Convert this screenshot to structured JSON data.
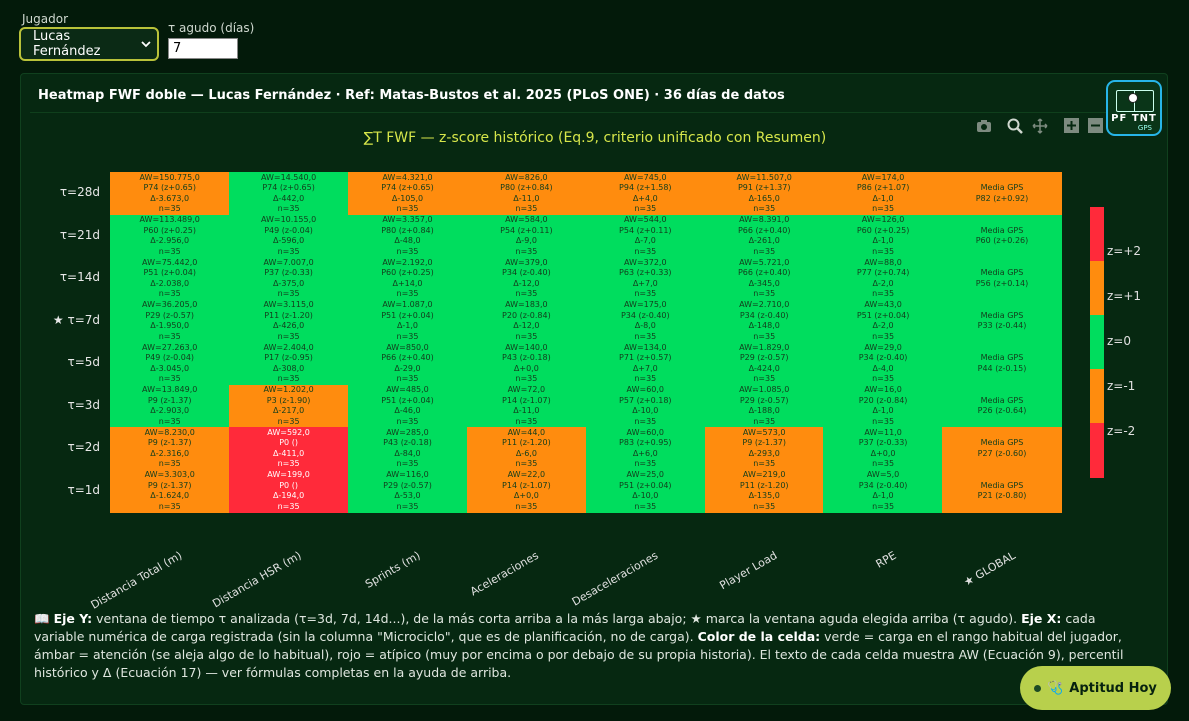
{
  "controls": {
    "player_label": "Jugador",
    "player_value": "Lucas Fernández",
    "tau_label": "τ agudo (días)",
    "tau_value": "7"
  },
  "card": {
    "title": "Heatmap FWF doble — Lucas Fernández · Ref: Matas-Bustos et al. 2025 (PLoS ONE) · 36 días de datos",
    "logo_text": "PF TNT",
    "logo_sub": "GPS"
  },
  "toolbar_icons": [
    "camera-icon",
    "zoom-icon",
    "pan-icon",
    "zoom-in-icon",
    "zoom-out-icon"
  ],
  "chart_data": {
    "type": "heatmap",
    "title": "∑T FWF — z-score histórico (Eq.9, criterio unificado con Resumen)",
    "rows": [
      "τ=28d",
      "τ=21d",
      "τ=14d",
      "★ τ=7d",
      "τ=5d",
      "τ=3d",
      "τ=2d",
      "τ=1d"
    ],
    "columns": [
      "Distancia Total (m)",
      "Distancia HSR (m)",
      "Sprints (m)",
      "Aceleraciones",
      "Desaceleraciones",
      "Player Load",
      "RPE",
      "★ GLOBAL"
    ],
    "colorscale": {
      "colors": [
        "#ff2a3a",
        "#ff8c0e",
        "#00dd5e",
        "#ff8c0e",
        "#ff2a3a"
      ],
      "ticks": [
        "z=+2",
        "z=+1",
        "z=0",
        "z=-1",
        "z=-2"
      ]
    },
    "colors": {
      "green": "#00dd5e",
      "amber": "#ff8c0e",
      "red": "#ff2a3a"
    },
    "cells": [
      [
        {
          "c": "amber",
          "t": [
            "AW=150.775,0",
            "P74 (z+0.65)",
            "Δ-3.673,0",
            "n=35"
          ]
        },
        {
          "c": "green",
          "t": [
            "AW=14.540,0",
            "P74 (z+0.65)",
            "Δ-442,0",
            "n=35"
          ]
        },
        {
          "c": "amber",
          "t": [
            "AW=4.321,0",
            "P74 (z+0.65)",
            "Δ-105,0",
            "n=35"
          ]
        },
        {
          "c": "amber",
          "t": [
            "AW=826,0",
            "P80 (z+0.84)",
            "Δ-11,0",
            "n=35"
          ]
        },
        {
          "c": "amber",
          "t": [
            "AW=745,0",
            "P94 (z+1.58)",
            "Δ+4,0",
            "n=35"
          ]
        },
        {
          "c": "amber",
          "t": [
            "AW=11.507,0",
            "P91 (z+1.37)",
            "Δ-165,0",
            "n=35"
          ]
        },
        {
          "c": "amber",
          "t": [
            "AW=174,0",
            "P86 (z+1.07)",
            "Δ-1,0",
            "n=35"
          ]
        },
        {
          "c": "amber",
          "t": [
            "Media GPS",
            "P82 (z+0.92)"
          ]
        }
      ],
      [
        {
          "c": "green",
          "t": [
            "AW=113.489,0",
            "P60 (z+0.25)",
            "Δ-2.956,0",
            "n=35"
          ]
        },
        {
          "c": "green",
          "t": [
            "AW=10.155,0",
            "P49 (z-0.04)",
            "Δ-596,0",
            "n=35"
          ]
        },
        {
          "c": "green",
          "t": [
            "AW=3.357,0",
            "P80 (z+0.84)",
            "Δ-48,0",
            "n=35"
          ]
        },
        {
          "c": "green",
          "t": [
            "AW=584,0",
            "P54 (z+0.11)",
            "Δ-9,0",
            "n=35"
          ]
        },
        {
          "c": "green",
          "t": [
            "AW=544,0",
            "P54 (z+0.11)",
            "Δ-7,0",
            "n=35"
          ]
        },
        {
          "c": "green",
          "t": [
            "AW=8.391,0",
            "P66 (z+0.40)",
            "Δ-261,0",
            "n=35"
          ]
        },
        {
          "c": "green",
          "t": [
            "AW=126,0",
            "P60 (z+0.25)",
            "Δ-1,0",
            "n=35"
          ]
        },
        {
          "c": "green",
          "t": [
            "Media GPS",
            "P60 (z+0.26)"
          ]
        }
      ],
      [
        {
          "c": "green",
          "t": [
            "AW=75.442,0",
            "P51 (z+0.04)",
            "Δ-2.038,0",
            "n=35"
          ]
        },
        {
          "c": "green",
          "t": [
            "AW=7.007,0",
            "P37 (z-0.33)",
            "Δ-375,0",
            "n=35"
          ]
        },
        {
          "c": "green",
          "t": [
            "AW=2.192,0",
            "P60 (z+0.25)",
            "Δ+14,0",
            "n=35"
          ]
        },
        {
          "c": "green",
          "t": [
            "AW=379,0",
            "P34 (z-0.40)",
            "Δ-12,0",
            "n=35"
          ]
        },
        {
          "c": "green",
          "t": [
            "AW=372,0",
            "P63 (z+0.33)",
            "Δ+7,0",
            "n=35"
          ]
        },
        {
          "c": "green",
          "t": [
            "AW=5.721,0",
            "P66 (z+0.40)",
            "Δ-345,0",
            "n=35"
          ]
        },
        {
          "c": "green",
          "t": [
            "AW=88,0",
            "P77 (z+0.74)",
            "Δ-2,0",
            "n=35"
          ]
        },
        {
          "c": "green",
          "t": [
            "Media GPS",
            "P56 (z+0.14)"
          ]
        }
      ],
      [
        {
          "c": "green",
          "t": [
            "AW=36.205,0",
            "P29 (z-0.57)",
            "Δ-1.950,0",
            "n=35"
          ]
        },
        {
          "c": "green",
          "t": [
            "AW=3.115,0",
            "P11 (z-1.20)",
            "Δ-426,0",
            "n=35"
          ]
        },
        {
          "c": "green",
          "t": [
            "AW=1.087,0",
            "P51 (z+0.04)",
            "Δ-1,0",
            "n=35"
          ]
        },
        {
          "c": "green",
          "t": [
            "AW=183,0",
            "P20 (z-0.84)",
            "Δ-12,0",
            "n=35"
          ]
        },
        {
          "c": "green",
          "t": [
            "AW=175,0",
            "P34 (z-0.40)",
            "Δ-8,0",
            "n=35"
          ]
        },
        {
          "c": "green",
          "t": [
            "AW=2.710,0",
            "P34 (z-0.40)",
            "Δ-148,0",
            "n=35"
          ]
        },
        {
          "c": "green",
          "t": [
            "AW=43,0",
            "P51 (z+0.04)",
            "Δ-2,0",
            "n=35"
          ]
        },
        {
          "c": "green",
          "t": [
            "Media GPS",
            "P33 (z-0.44)"
          ]
        }
      ],
      [
        {
          "c": "green",
          "t": [
            "AW=27.263,0",
            "P49 (z-0.04)",
            "Δ-3.045,0",
            "n=35"
          ]
        },
        {
          "c": "green",
          "t": [
            "AW=2.404,0",
            "P17 (z-0.95)",
            "Δ-308,0",
            "n=35"
          ]
        },
        {
          "c": "green",
          "t": [
            "AW=850,0",
            "P66 (z+0.40)",
            "Δ-29,0",
            "n=35"
          ]
        },
        {
          "c": "green",
          "t": [
            "AW=140,0",
            "P43 (z-0.18)",
            "Δ+0,0",
            "n=35"
          ]
        },
        {
          "c": "green",
          "t": [
            "AW=134,0",
            "P71 (z+0.57)",
            "Δ+7,0",
            "n=35"
          ]
        },
        {
          "c": "green",
          "t": [
            "AW=1.829,0",
            "P29 (z-0.57)",
            "Δ-424,0",
            "n=35"
          ]
        },
        {
          "c": "green",
          "t": [
            "AW=29,0",
            "P34 (z-0.40)",
            "Δ-4,0",
            "n=35"
          ]
        },
        {
          "c": "green",
          "t": [
            "Media GPS",
            "P44 (z-0.15)"
          ]
        }
      ],
      [
        {
          "c": "green",
          "t": [
            "AW=13.849,0",
            "P9 (z-1.37)",
            "Δ-2.903,0",
            "n=35"
          ]
        },
        {
          "c": "amber",
          "t": [
            "AW=1.202,0",
            "P3 (z-1.90)",
            "Δ-217,0",
            "n=35"
          ]
        },
        {
          "c": "green",
          "t": [
            "AW=485,0",
            "P51 (z+0.04)",
            "Δ-46,0",
            "n=35"
          ]
        },
        {
          "c": "green",
          "t": [
            "AW=72,0",
            "P14 (z-1.07)",
            "Δ-11,0",
            "n=35"
          ]
        },
        {
          "c": "green",
          "t": [
            "AW=60,0",
            "P57 (z+0.18)",
            "Δ-10,0",
            "n=35"
          ]
        },
        {
          "c": "green",
          "t": [
            "AW=1.085,0",
            "P29 (z-0.57)",
            "Δ-188,0",
            "n=35"
          ]
        },
        {
          "c": "green",
          "t": [
            "AW=16,0",
            "P20 (z-0.84)",
            "Δ-1,0",
            "n=35"
          ]
        },
        {
          "c": "green",
          "t": [
            "Media GPS",
            "P26 (z-0.64)"
          ]
        }
      ],
      [
        {
          "c": "amber",
          "t": [
            "AW=8.230,0",
            "P9 (z-1.37)",
            "Δ-2.316,0",
            "n=35"
          ]
        },
        {
          "c": "red",
          "t": [
            "AW=592,0",
            "P0 ()",
            "Δ-411,0",
            "n=35"
          ]
        },
        {
          "c": "green",
          "t": [
            "AW=285,0",
            "P43 (z-0.18)",
            "Δ-84,0",
            "n=35"
          ]
        },
        {
          "c": "amber",
          "t": [
            "AW=44,0",
            "P11 (z-1.20)",
            "Δ-6,0",
            "n=35"
          ]
        },
        {
          "c": "green",
          "t": [
            "AW=60,0",
            "P83 (z+0.95)",
            "Δ+6,0",
            "n=35"
          ]
        },
        {
          "c": "amber",
          "t": [
            "AW=573,0",
            "P9 (z-1.37)",
            "Δ-293,0",
            "n=35"
          ]
        },
        {
          "c": "green",
          "t": [
            "AW=11,0",
            "P37 (z-0.33)",
            "Δ+0,0",
            "n=35"
          ]
        },
        {
          "c": "amber",
          "t": [
            "Media GPS",
            "P27 (z-0.60)"
          ]
        }
      ],
      [
        {
          "c": "amber",
          "t": [
            "AW=3.303,0",
            "P9 (z-1.37)",
            "Δ-1.624,0",
            "n=35"
          ]
        },
        {
          "c": "red",
          "t": [
            "AW=199,0",
            "P0 ()",
            "Δ-194,0",
            "n=35"
          ]
        },
        {
          "c": "green",
          "t": [
            "AW=116,0",
            "P29 (z-0.57)",
            "Δ-53,0",
            "n=35"
          ]
        },
        {
          "c": "amber",
          "t": [
            "AW=22,0",
            "P14 (z-1.07)",
            "Δ+0,0",
            "n=35"
          ]
        },
        {
          "c": "green",
          "t": [
            "AW=25,0",
            "P51 (z+0.04)",
            "Δ-10,0",
            "n=35"
          ]
        },
        {
          "c": "amber",
          "t": [
            "AW=219,0",
            "P11 (z-1.20)",
            "Δ-135,0",
            "n=35"
          ]
        },
        {
          "c": "green",
          "t": [
            "AW=5,0",
            "P34 (z-0.40)",
            "Δ-1,0",
            "n=35"
          ]
        },
        {
          "c": "amber",
          "t": [
            "Media GPS",
            "P21 (z-0.80)"
          ]
        }
      ]
    ]
  },
  "legend": {
    "icon": "📖",
    "y_heading": "Eje Y:",
    "y_text": " ventana de tiempo τ analizada (τ=3d, 7d, 14d...), de la más corta arriba a la más larga abajo; ★ marca la ventana aguda elegida arriba (τ agudo). ",
    "x_heading": "Eje X:",
    "x_text": " cada variable numérica de carga registrada (sin la columna \"Microciclo\", que es de planificación, no de carga). ",
    "color_heading": "Color de la celda:",
    "color_text": " verde = carga en el rango habitual del jugador, ámbar = atención (se aleja algo de lo habitual), rojo = atípico (muy por encima o por debajo de su propia historia). El texto de cada celda muestra AW (Ecuación 9), percentil histórico y Δ (Ecuación 17) — ver fórmulas completas en la ayuda de arriba."
  },
  "aptitud_button": {
    "icon": "🩺",
    "label": "Aptitud Hoy"
  }
}
